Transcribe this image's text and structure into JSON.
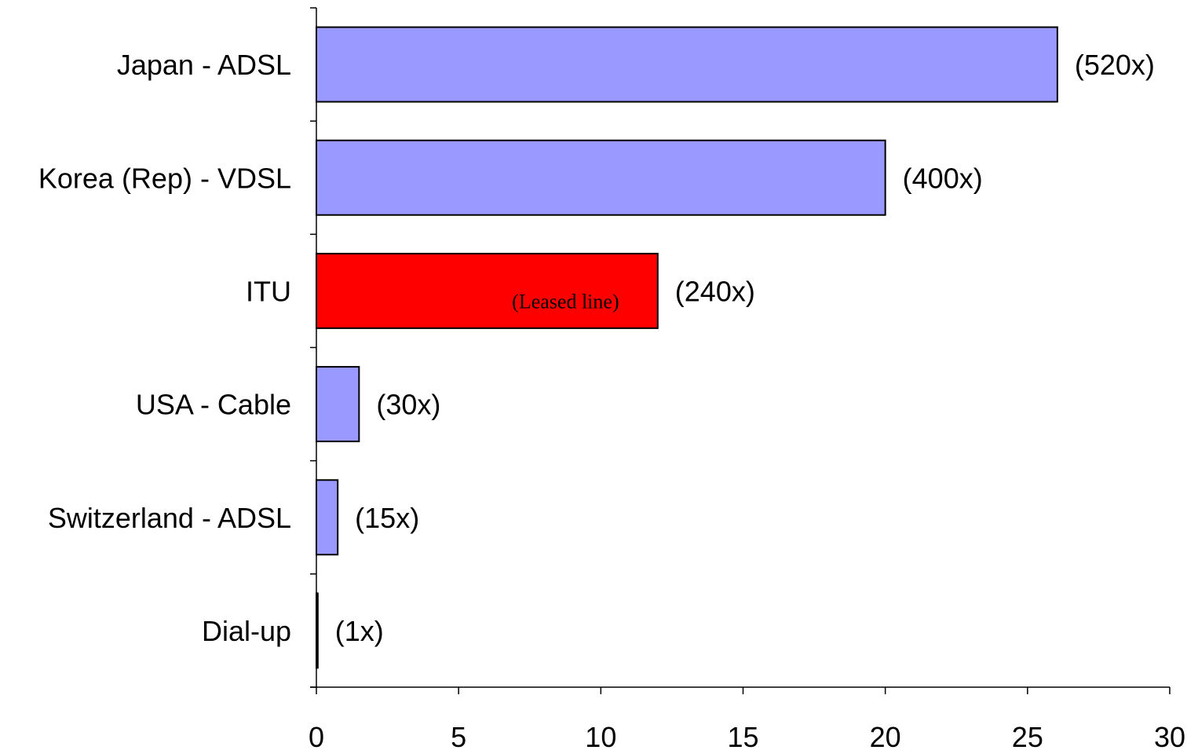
{
  "chart_data": {
    "type": "bar",
    "orientation": "horizontal",
    "categories": [
      "Japan - ADSL",
      "Korea (Rep) - VDSL",
      "ITU",
      "USA - Cable",
      "Switzerland - ADSL",
      "Dial-up"
    ],
    "values": [
      26.05,
      20.0,
      12.0,
      1.5,
      0.75,
      0.05
    ],
    "value_labels": [
      "(520x)",
      "(400x)",
      "(240x)",
      "(30x)",
      "(15x)",
      "(1x)"
    ],
    "bar_colors": [
      "#9999ff",
      "#9999ff",
      "#ff0000",
      "#9999ff",
      "#9999ff",
      "#9999ff"
    ],
    "annotations": [
      {
        "category": "ITU",
        "text": "(Leased line)"
      }
    ],
    "xlim": [
      0,
      30
    ],
    "xticks": [
      0,
      5,
      10,
      15,
      20,
      25,
      30
    ],
    "title": "",
    "xlabel": "",
    "ylabel": "",
    "grid": false,
    "legend": "none"
  }
}
